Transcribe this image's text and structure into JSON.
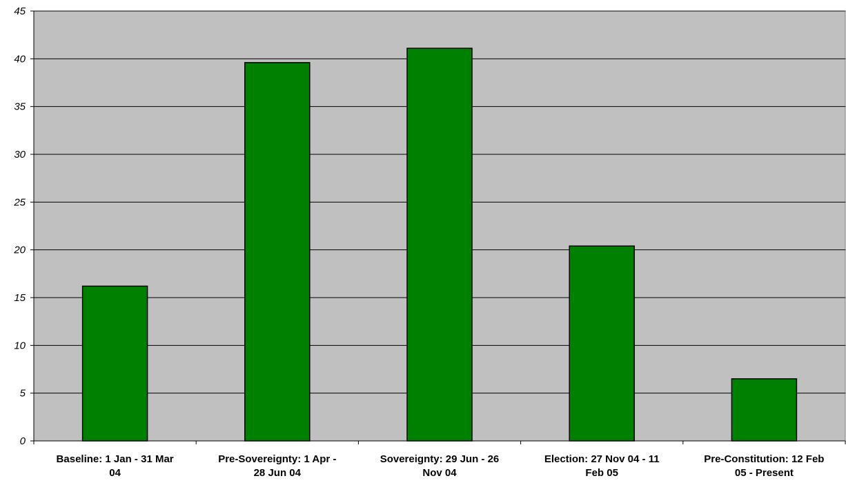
{
  "chart_data": {
    "type": "bar",
    "categories": [
      "Baseline: 1 Jan - 31 Mar 04",
      "Pre-Sovereignty: 1 Apr - 28 Jun 04",
      "Sovereignty: 29 Jun - 26 Nov 04",
      "Election: 27 Nov 04 - 11 Feb 05",
      "Pre-Constitution: 12 Feb 05 - Present"
    ],
    "category_lines": [
      [
        "Baseline: 1 Jan - 31 Mar",
        "04"
      ],
      [
        "Pre-Sovereignty: 1 Apr -",
        "28 Jun 04"
      ],
      [
        "Sovereignty: 29 Jun - 26",
        "Nov 04"
      ],
      [
        "Election: 27 Nov 04 - 11",
        "Feb 05"
      ],
      [
        "Pre-Constitution: 12 Feb",
        "05 - Present"
      ]
    ],
    "values": [
      16.2,
      39.6,
      41.1,
      20.4,
      6.5
    ],
    "title": "",
    "xlabel": "",
    "ylabel": "",
    "ylim": [
      0,
      45
    ],
    "y_ticks": [
      "0",
      "5",
      "10",
      "15",
      "20",
      "25",
      "30",
      "35",
      "40",
      "45"
    ],
    "grid": true,
    "legend": "none",
    "colors": {
      "bar": "#008000",
      "plot_background": "#c0c0c0",
      "gridline": "#000000"
    }
  }
}
